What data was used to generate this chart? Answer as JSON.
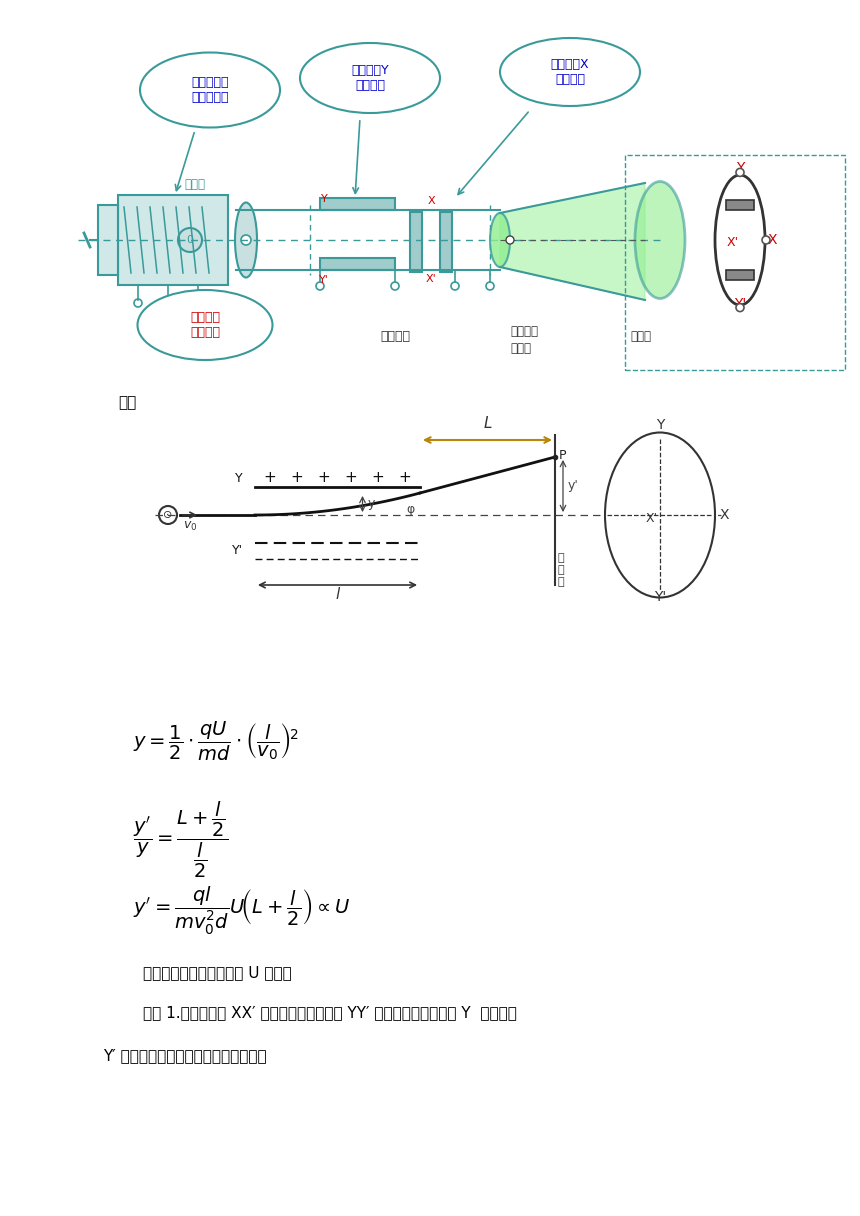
{
  "bg_color": "#ffffff",
  "fig_width": 8.6,
  "fig_height": 12.16,
  "top_diagram": {
    "bubble1_text": "产生高速飞\n行的电子束",
    "bubble2_text": "使电子沿Y\n方向偏移",
    "bubble3_text": "使电子沿X\n方向偏移",
    "label1": "电子枪",
    "label2": "偏转电极",
    "label3_a": "锯齿形扫",
    "label3_b": "描电压",
    "label4": "荧光屏",
    "label5_text": "待显示的\n电压信号",
    "teal_color": "#3a9a9a",
    "red_color": "#cc0000",
    "blue_color": "#0000cc",
    "green_fill": "#90ee90"
  },
  "principle_label": "原理",
  "text_color": "#000000",
  "text1": "偏移量与偏转电极的电压 U 成正比",
  "text2": "思考 1.如果在电极 XX′ 之间不加电压，而在 YY′ 之间加不变电压，使 Y  的电势比",
  "text3": "Y′ 高，电子将打在荧光屏的什么位置？"
}
